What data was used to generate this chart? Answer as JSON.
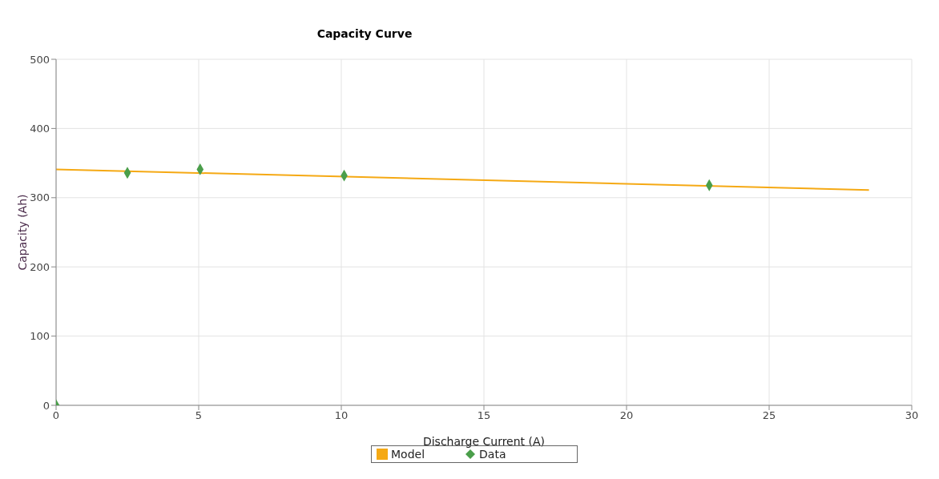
{
  "chart_data": {
    "type": "line",
    "title": "Capacity Curve",
    "xlabel": "Discharge Current (A)",
    "ylabel": "Capacity (Ah)",
    "xlim": [
      0,
      30
    ],
    "xticks": [
      0,
      5,
      10,
      15,
      20,
      25,
      30
    ],
    "ylim": [
      0,
      500
    ],
    "yticks": [
      0,
      100,
      200,
      300,
      400,
      500
    ],
    "grid": true,
    "legend": "bottom",
    "series": [
      {
        "name": "Model",
        "color": "#f5a914",
        "marker": "none",
        "line_style": "solid",
        "x": [
          0,
          28.5
        ],
        "values": [
          341,
          311
        ]
      },
      {
        "name": "Data",
        "type": "scatter",
        "color": "#4a9e4a",
        "marker": "diamond",
        "x": [
          0,
          2.5,
          5.05,
          10.1,
          22.9
        ],
        "values": [
          0,
          336,
          341,
          332,
          318
        ]
      }
    ]
  }
}
